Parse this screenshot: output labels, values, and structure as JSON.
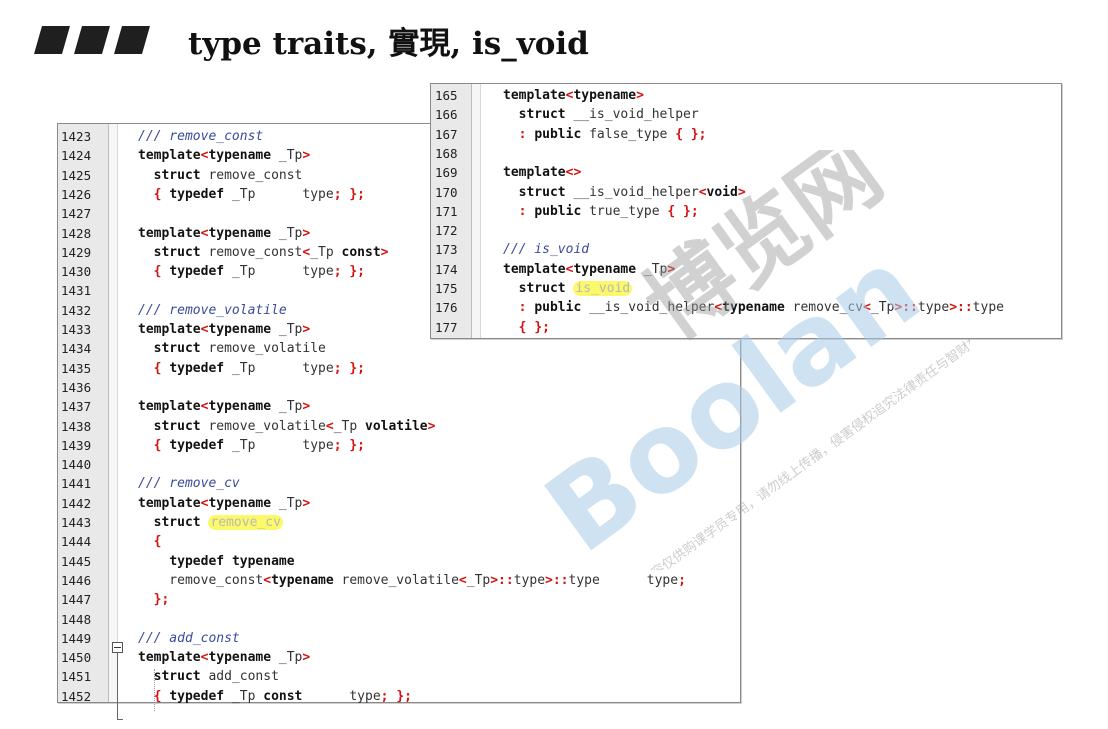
{
  "slide": {
    "title": "type traits, 實現, is_void"
  },
  "panels": [
    {
      "id": "remove-traits",
      "lines": [
        {
          "n": "1423",
          "tokens": [
            [
              "cm",
              "/// remove_const"
            ]
          ]
        },
        {
          "n": "1424",
          "tokens": [
            [
              "kw",
              "template"
            ],
            [
              "op",
              "<"
            ],
            [
              "kw",
              "typename"
            ],
            [
              "tx",
              " _Tp"
            ],
            [
              "op",
              ">"
            ]
          ]
        },
        {
          "n": "1425",
          "tokens": [
            [
              "tx",
              "  "
            ],
            [
              "kw",
              "struct"
            ],
            [
              "tx",
              " remove_const"
            ]
          ]
        },
        {
          "n": "1426",
          "tokens": [
            [
              "tx",
              "  "
            ],
            [
              "op",
              "{"
            ],
            [
              "tx",
              " "
            ],
            [
              "kw",
              "typedef"
            ],
            [
              "tx",
              " _Tp      type"
            ],
            [
              "op",
              ";"
            ],
            [
              "tx",
              " "
            ],
            [
              "op",
              "};"
            ]
          ]
        },
        {
          "n": "1427",
          "tokens": []
        },
        {
          "n": "1428",
          "tokens": [
            [
              "kw",
              "template"
            ],
            [
              "op",
              "<"
            ],
            [
              "kw",
              "typename"
            ],
            [
              "tx",
              " _Tp"
            ],
            [
              "op",
              ">"
            ]
          ]
        },
        {
          "n": "1429",
          "tokens": [
            [
              "tx",
              "  "
            ],
            [
              "kw",
              "struct"
            ],
            [
              "tx",
              " remove_const"
            ],
            [
              "op",
              "<"
            ],
            [
              "tx",
              "_Tp "
            ],
            [
              "kw",
              "const"
            ],
            [
              "op",
              ">"
            ]
          ]
        },
        {
          "n": "1430",
          "tokens": [
            [
              "tx",
              "  "
            ],
            [
              "op",
              "{"
            ],
            [
              "tx",
              " "
            ],
            [
              "kw",
              "typedef"
            ],
            [
              "tx",
              " _Tp      type"
            ],
            [
              "op",
              ";"
            ],
            [
              "tx",
              " "
            ],
            [
              "op",
              "};"
            ]
          ]
        },
        {
          "n": "1431",
          "tokens": []
        },
        {
          "n": "1432",
          "tokens": [
            [
              "cm",
              "/// remove_volatile"
            ]
          ]
        },
        {
          "n": "1433",
          "tokens": [
            [
              "kw",
              "template"
            ],
            [
              "op",
              "<"
            ],
            [
              "kw",
              "typename"
            ],
            [
              "tx",
              " _Tp"
            ],
            [
              "op",
              ">"
            ]
          ]
        },
        {
          "n": "1434",
          "tokens": [
            [
              "tx",
              "  "
            ],
            [
              "kw",
              "struct"
            ],
            [
              "tx",
              " remove_volatile"
            ]
          ]
        },
        {
          "n": "1435",
          "tokens": [
            [
              "tx",
              "  "
            ],
            [
              "op",
              "{"
            ],
            [
              "tx",
              " "
            ],
            [
              "kw",
              "typedef"
            ],
            [
              "tx",
              " _Tp      type"
            ],
            [
              "op",
              ";"
            ],
            [
              "tx",
              " "
            ],
            [
              "op",
              "};"
            ]
          ]
        },
        {
          "n": "1436",
          "tokens": []
        },
        {
          "n": "1437",
          "tokens": [
            [
              "kw",
              "template"
            ],
            [
              "op",
              "<"
            ],
            [
              "kw",
              "typename"
            ],
            [
              "tx",
              " _Tp"
            ],
            [
              "op",
              ">"
            ]
          ]
        },
        {
          "n": "1438",
          "tokens": [
            [
              "tx",
              "  "
            ],
            [
              "kw",
              "struct"
            ],
            [
              "tx",
              " remove_volatile"
            ],
            [
              "op",
              "<"
            ],
            [
              "tx",
              "_Tp "
            ],
            [
              "kw",
              "volatile"
            ],
            [
              "op",
              ">"
            ]
          ]
        },
        {
          "n": "1439",
          "tokens": [
            [
              "tx",
              "  "
            ],
            [
              "op",
              "{"
            ],
            [
              "tx",
              " "
            ],
            [
              "kw",
              "typedef"
            ],
            [
              "tx",
              " _Tp      type"
            ],
            [
              "op",
              ";"
            ],
            [
              "tx",
              " "
            ],
            [
              "op",
              "};"
            ]
          ]
        },
        {
          "n": "1440",
          "tokens": []
        },
        {
          "n": "1441",
          "tokens": [
            [
              "cm",
              "/// remove_cv"
            ]
          ]
        },
        {
          "n": "1442",
          "tokens": [
            [
              "kw",
              "template"
            ],
            [
              "op",
              "<"
            ],
            [
              "kw",
              "typename"
            ],
            [
              "tx",
              " _Tp"
            ],
            [
              "op",
              ">"
            ]
          ]
        },
        {
          "n": "1443",
          "tokens": [
            [
              "tx",
              "  "
            ],
            [
              "kw",
              "struct"
            ],
            [
              "tx",
              " "
            ],
            [
              "hl",
              "remove_cv"
            ]
          ]
        },
        {
          "n": "1444",
          "tokens": [
            [
              "tx",
              "  "
            ],
            [
              "op",
              "{"
            ]
          ]
        },
        {
          "n": "1445",
          "tokens": [
            [
              "tx",
              "    "
            ],
            [
              "kw",
              "typedef"
            ],
            [
              "tx",
              " "
            ],
            [
              "kw",
              "typename"
            ]
          ]
        },
        {
          "n": "1446",
          "tokens": [
            [
              "tx",
              "    remove_const"
            ],
            [
              "op",
              "<"
            ],
            [
              "kw",
              "typename"
            ],
            [
              "tx",
              " remove_volatile"
            ],
            [
              "op",
              "<"
            ],
            [
              "tx",
              "_Tp"
            ],
            [
              "op",
              ">::"
            ],
            [
              "tx",
              "type"
            ],
            [
              "op",
              ">::"
            ],
            [
              "tx",
              "type      type"
            ],
            [
              "op",
              ";"
            ]
          ]
        },
        {
          "n": "1447",
          "tokens": [
            [
              "tx",
              "  "
            ],
            [
              "op",
              "};"
            ]
          ]
        },
        {
          "n": "1448",
          "tokens": []
        },
        {
          "n": "1449",
          "tokens": [
            [
              "cm",
              "/// add_const"
            ]
          ]
        },
        {
          "n": "1450",
          "tokens": [
            [
              "kw",
              "template"
            ],
            [
              "op",
              "<"
            ],
            [
              "kw",
              "typename"
            ],
            [
              "tx",
              " _Tp"
            ],
            [
              "op",
              ">"
            ]
          ]
        },
        {
          "n": "1451",
          "tokens": [
            [
              "tx",
              "  "
            ],
            [
              "kw",
              "struct"
            ],
            [
              "tx",
              " add_const"
            ]
          ]
        },
        {
          "n": "1452",
          "tokens": [
            [
              "tx",
              "  "
            ],
            [
              "op",
              "{"
            ],
            [
              "tx",
              " "
            ],
            [
              "kw",
              "typedef"
            ],
            [
              "tx",
              " _Tp "
            ],
            [
              "kw",
              "const"
            ],
            [
              "tx",
              "      type"
            ],
            [
              "op",
              ";"
            ],
            [
              "tx",
              " "
            ],
            [
              "op",
              "};"
            ]
          ]
        }
      ]
    },
    {
      "id": "is-void",
      "lines": [
        {
          "n": "165",
          "tokens": [
            [
              "kw",
              "template"
            ],
            [
              "op",
              "<"
            ],
            [
              "kw",
              "typename"
            ],
            [
              "op",
              ">"
            ]
          ]
        },
        {
          "n": "166",
          "tokens": [
            [
              "tx",
              "  "
            ],
            [
              "kw",
              "struct"
            ],
            [
              "tx",
              " __is_void_helper"
            ]
          ]
        },
        {
          "n": "167",
          "tokens": [
            [
              "tx",
              "  "
            ],
            [
              "op",
              ":"
            ],
            [
              "tx",
              " "
            ],
            [
              "kw",
              "public"
            ],
            [
              "tx",
              " false_type "
            ],
            [
              "op",
              "{"
            ],
            [
              "tx",
              " "
            ],
            [
              "op",
              "};"
            ]
          ]
        },
        {
          "n": "168",
          "tokens": []
        },
        {
          "n": "169",
          "tokens": [
            [
              "kw",
              "template"
            ],
            [
              "op",
              "<>"
            ]
          ]
        },
        {
          "n": "170",
          "tokens": [
            [
              "tx",
              "  "
            ],
            [
              "kw",
              "struct"
            ],
            [
              "tx",
              " __is_void_helper"
            ],
            [
              "op",
              "<"
            ],
            [
              "kw",
              "void"
            ],
            [
              "op",
              ">"
            ]
          ]
        },
        {
          "n": "171",
          "tokens": [
            [
              "tx",
              "  "
            ],
            [
              "op",
              ":"
            ],
            [
              "tx",
              " "
            ],
            [
              "kw",
              "public"
            ],
            [
              "tx",
              " true_type "
            ],
            [
              "op",
              "{"
            ],
            [
              "tx",
              " "
            ],
            [
              "op",
              "};"
            ]
          ]
        },
        {
          "n": "172",
          "tokens": []
        },
        {
          "n": "173",
          "tokens": [
            [
              "cm",
              "/// is_void"
            ]
          ]
        },
        {
          "n": "174",
          "tokens": [
            [
              "kw",
              "template"
            ],
            [
              "op",
              "<"
            ],
            [
              "kw",
              "typename"
            ],
            [
              "tx",
              " _Tp"
            ],
            [
              "op",
              ">"
            ]
          ]
        },
        {
          "n": "175",
          "tokens": [
            [
              "tx",
              "  "
            ],
            [
              "kw",
              "struct"
            ],
            [
              "tx",
              " "
            ],
            [
              "hl",
              "is_void"
            ]
          ]
        },
        {
          "n": "176",
          "tokens": [
            [
              "tx",
              "  "
            ],
            [
              "op",
              ":"
            ],
            [
              "tx",
              " "
            ],
            [
              "kw",
              "public"
            ],
            [
              "tx",
              " __is_void_helper"
            ],
            [
              "op",
              "<"
            ],
            [
              "kw",
              "typename"
            ],
            [
              "tx",
              " remove_cv"
            ],
            [
              "op",
              "<"
            ],
            [
              "tx",
              "_Tp"
            ],
            [
              "op",
              ">::"
            ],
            [
              "tx",
              "type"
            ],
            [
              "op",
              ">::"
            ],
            [
              "tx",
              "type"
            ]
          ]
        },
        {
          "n": "177",
          "tokens": [
            [
              "tx",
              "  "
            ],
            [
              "op",
              "{"
            ],
            [
              "tx",
              " "
            ],
            [
              "op",
              "};"
            ]
          ]
        }
      ]
    }
  ],
  "watermark": {
    "brand": "Boolan",
    "cjk": "博览网",
    "notice": "本内容仅供购课学员专用，请勿线上传播，侵害侵权追究法律责任与智财权。"
  },
  "colors": {
    "keyword": "#111111",
    "operator": "#d41111",
    "comment": "#3b4a9a",
    "highlight": "#fbf96a",
    "watermark": "#a9cbe6"
  }
}
